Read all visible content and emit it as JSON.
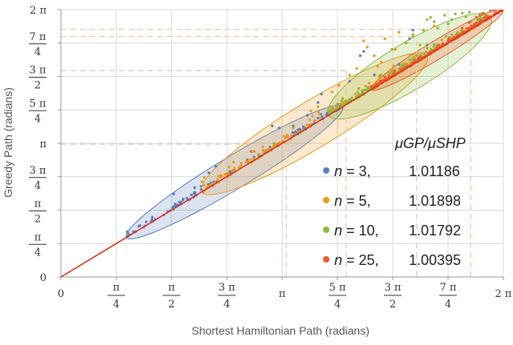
{
  "chart_data": {
    "type": "scatter",
    "title": "",
    "xlabel": "Shortest Hamiltonian Path (radians)",
    "ylabel": "Greedy Path (radians)",
    "xlim": [
      0,
      6.2832
    ],
    "ylim": [
      0,
      6.2832
    ],
    "grid": true,
    "x_ticks": [
      {
        "value": 0,
        "label": "0",
        "frac": false
      },
      {
        "value": 0.7854,
        "num": "π",
        "den": "4",
        "frac": true
      },
      {
        "value": 1.5708,
        "num": "π",
        "den": "2",
        "frac": true
      },
      {
        "value": 2.3562,
        "num": "3 π",
        "den": "4",
        "frac": true
      },
      {
        "value": 3.1416,
        "label": "π",
        "frac": false
      },
      {
        "value": 3.927,
        "num": "5 π",
        "den": "4",
        "frac": true
      },
      {
        "value": 4.7124,
        "num": "3 π",
        "den": "2",
        "frac": true
      },
      {
        "value": 5.4978,
        "num": "7 π",
        "den": "4",
        "frac": true
      },
      {
        "value": 6.2832,
        "label": "2 π",
        "frac": false
      }
    ],
    "y_ticks": [
      {
        "value": 0,
        "label": "0",
        "frac": false
      },
      {
        "value": 0.7854,
        "num": "π",
        "den": "4",
        "frac": true
      },
      {
        "value": 1.5708,
        "num": "π",
        "den": "2",
        "frac": true
      },
      {
        "value": 2.3562,
        "num": "3 π",
        "den": "4",
        "frac": true
      },
      {
        "value": 3.1416,
        "label": "π",
        "frac": false
      },
      {
        "value": 3.927,
        "num": "5 π",
        "den": "4",
        "frac": true
      },
      {
        "value": 4.7124,
        "num": "3 π",
        "den": "2",
        "frac": true
      },
      {
        "value": 5.4978,
        "num": "7 π",
        "den": "4",
        "frac": true
      },
      {
        "value": 6.2832,
        "label": "2 π",
        "frac": false
      }
    ],
    "reference_line": {
      "name": "y = x",
      "color": "#e0301e"
    },
    "legend_title": "μGP/μSHP",
    "legend_position": "lower-right",
    "series": [
      {
        "name": "n = 3",
        "n_label": "n",
        "n_value": "= 3,",
        "ratio": "1.01186",
        "color": "#5b7fc0",
        "ellipse": {
          "x_range": [
            0.93,
            4.0
          ],
          "minor_halfwidth": 0.23
        },
        "dashed_max": [
          3.2,
          3.12
        ],
        "outliers": [
          [
            2.2,
            2.6
          ],
          [
            2.1,
            2.45
          ],
          [
            2.7,
            2.95
          ],
          [
            3.1,
            3.5
          ],
          [
            3.0,
            3.55
          ],
          [
            3.5,
            3.8
          ],
          [
            3.7,
            4.3
          ],
          [
            3.65,
            4.1
          ],
          [
            4.3,
            5.3
          ],
          [
            4.25,
            5.2
          ],
          [
            4.1,
            4.6
          ],
          [
            4.45,
            4.75
          ],
          [
            1.6,
            1.95
          ],
          [
            1.9,
            2.1
          ],
          [
            3.3,
            3.55
          ],
          [
            4.8,
            5.0
          ],
          [
            5.0,
            5.8
          ],
          [
            4.95,
            5.6
          ],
          [
            5.2,
            5.45
          ]
        ]
      },
      {
        "name": "n = 5",
        "n_label": "n",
        "n_value": "= 5,",
        "ratio": "1.01898",
        "color": "#ea9b1a",
        "ellipse": {
          "x_range": [
            2.0,
            5.2
          ],
          "minor_halfwidth": 0.33
        },
        "dashed_max": [
          4.05,
          4.85
        ],
        "outliers": [
          [
            4.3,
            5.55
          ],
          [
            4.45,
            5.2
          ],
          [
            4.6,
            5.6
          ],
          [
            4.55,
            5.05
          ],
          [
            4.8,
            5.75
          ],
          [
            4.75,
            5.35
          ],
          [
            5.0,
            5.7
          ],
          [
            5.2,
            6.05
          ],
          [
            3.85,
            4.35
          ],
          [
            4.1,
            4.75
          ],
          [
            4.2,
            4.9
          ],
          [
            3.65,
            4.0
          ],
          [
            3.55,
            3.9
          ],
          [
            3.95,
            4.5
          ],
          [
            4.0,
            4.2
          ],
          [
            4.9,
            5.5
          ],
          [
            5.3,
            5.9
          ],
          [
            2.45,
            2.7
          ],
          [
            2.75,
            2.95
          ],
          [
            3.3,
            3.5
          ],
          [
            4.35,
            5.4
          ],
          [
            4.5,
            4.95
          ]
        ]
      },
      {
        "name": "n = 10",
        "n_label": "n",
        "n_value": "= 10,",
        "ratio": "1.01792",
        "color": "#8dba3a",
        "ellipse": {
          "x_range": [
            3.8,
            6.1
          ],
          "minor_halfwidth": 0.33
        },
        "dashed_max": [
          5.05,
          5.65
        ],
        "outliers": [
          [
            5.3,
            6.0
          ],
          [
            5.45,
            6.15
          ],
          [
            5.25,
            6.1
          ],
          [
            5.55,
            6.05
          ],
          [
            5.7,
            6.2
          ],
          [
            5.6,
            6.18
          ],
          [
            5.0,
            5.65
          ],
          [
            5.15,
            5.8
          ],
          [
            4.9,
            5.5
          ],
          [
            5.35,
            5.85
          ],
          [
            5.8,
            6.22
          ],
          [
            4.7,
            5.35
          ],
          [
            5.75,
            6.12
          ],
          [
            5.5,
            5.95
          ],
          [
            4.95,
            5.1
          ],
          [
            5.1,
            5.45
          ]
        ]
      },
      {
        "name": "n = 25",
        "n_label": "n",
        "n_value": "= 25,",
        "ratio": "1.00395",
        "color": "#ee5a2c",
        "ellipse": {
          "x_range": [
            4.4,
            6.28
          ],
          "minor_halfwidth": 0.13
        },
        "dashed_max": [
          5.82,
          5.82
        ],
        "outliers": [
          [
            5.9,
            6.1
          ],
          [
            6.0,
            6.2
          ],
          [
            5.8,
            5.98
          ],
          [
            6.1,
            6.25
          ],
          [
            5.95,
            6.15
          ],
          [
            5.7,
            5.85
          ],
          [
            6.15,
            6.28
          ]
        ]
      }
    ]
  }
}
